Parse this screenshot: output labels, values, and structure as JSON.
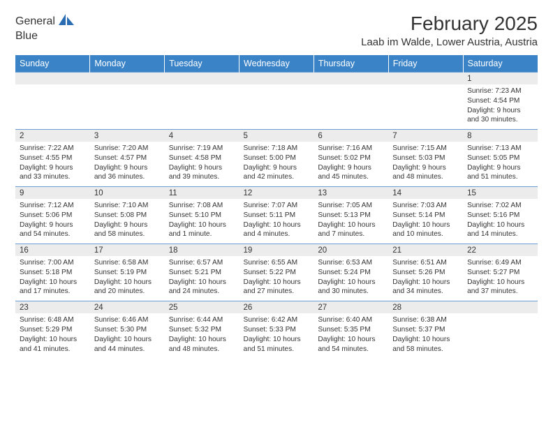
{
  "brand": {
    "part1": "General",
    "part2": "Blue",
    "icon_color": "#2a6db3",
    "text_color_gray": "#5a5a5a"
  },
  "title": "February 2025",
  "location": "Laab im Walde, Lower Austria, Austria",
  "colors": {
    "header_bg": "#3b83c7",
    "header_text": "#ffffff",
    "daynum_bg": "#ececec",
    "rule": "#6a9dd3",
    "body_text": "#333333"
  },
  "weekday_labels": [
    "Sunday",
    "Monday",
    "Tuesday",
    "Wednesday",
    "Thursday",
    "Friday",
    "Saturday"
  ],
  "weeks": [
    {
      "nums": [
        "",
        "",
        "",
        "",
        "",
        "",
        "1"
      ],
      "cells": [
        null,
        null,
        null,
        null,
        null,
        null,
        {
          "sunrise": "Sunrise: 7:23 AM",
          "sunset": "Sunset: 4:54 PM",
          "daylight": "Daylight: 9 hours and 30 minutes."
        }
      ]
    },
    {
      "nums": [
        "2",
        "3",
        "4",
        "5",
        "6",
        "7",
        "8"
      ],
      "cells": [
        {
          "sunrise": "Sunrise: 7:22 AM",
          "sunset": "Sunset: 4:55 PM",
          "daylight": "Daylight: 9 hours and 33 minutes."
        },
        {
          "sunrise": "Sunrise: 7:20 AM",
          "sunset": "Sunset: 4:57 PM",
          "daylight": "Daylight: 9 hours and 36 minutes."
        },
        {
          "sunrise": "Sunrise: 7:19 AM",
          "sunset": "Sunset: 4:58 PM",
          "daylight": "Daylight: 9 hours and 39 minutes."
        },
        {
          "sunrise": "Sunrise: 7:18 AM",
          "sunset": "Sunset: 5:00 PM",
          "daylight": "Daylight: 9 hours and 42 minutes."
        },
        {
          "sunrise": "Sunrise: 7:16 AM",
          "sunset": "Sunset: 5:02 PM",
          "daylight": "Daylight: 9 hours and 45 minutes."
        },
        {
          "sunrise": "Sunrise: 7:15 AM",
          "sunset": "Sunset: 5:03 PM",
          "daylight": "Daylight: 9 hours and 48 minutes."
        },
        {
          "sunrise": "Sunrise: 7:13 AM",
          "sunset": "Sunset: 5:05 PM",
          "daylight": "Daylight: 9 hours and 51 minutes."
        }
      ]
    },
    {
      "nums": [
        "9",
        "10",
        "11",
        "12",
        "13",
        "14",
        "15"
      ],
      "cells": [
        {
          "sunrise": "Sunrise: 7:12 AM",
          "sunset": "Sunset: 5:06 PM",
          "daylight": "Daylight: 9 hours and 54 minutes."
        },
        {
          "sunrise": "Sunrise: 7:10 AM",
          "sunset": "Sunset: 5:08 PM",
          "daylight": "Daylight: 9 hours and 58 minutes."
        },
        {
          "sunrise": "Sunrise: 7:08 AM",
          "sunset": "Sunset: 5:10 PM",
          "daylight": "Daylight: 10 hours and 1 minute."
        },
        {
          "sunrise": "Sunrise: 7:07 AM",
          "sunset": "Sunset: 5:11 PM",
          "daylight": "Daylight: 10 hours and 4 minutes."
        },
        {
          "sunrise": "Sunrise: 7:05 AM",
          "sunset": "Sunset: 5:13 PM",
          "daylight": "Daylight: 10 hours and 7 minutes."
        },
        {
          "sunrise": "Sunrise: 7:03 AM",
          "sunset": "Sunset: 5:14 PM",
          "daylight": "Daylight: 10 hours and 10 minutes."
        },
        {
          "sunrise": "Sunrise: 7:02 AM",
          "sunset": "Sunset: 5:16 PM",
          "daylight": "Daylight: 10 hours and 14 minutes."
        }
      ]
    },
    {
      "nums": [
        "16",
        "17",
        "18",
        "19",
        "20",
        "21",
        "22"
      ],
      "cells": [
        {
          "sunrise": "Sunrise: 7:00 AM",
          "sunset": "Sunset: 5:18 PM",
          "daylight": "Daylight: 10 hours and 17 minutes."
        },
        {
          "sunrise": "Sunrise: 6:58 AM",
          "sunset": "Sunset: 5:19 PM",
          "daylight": "Daylight: 10 hours and 20 minutes."
        },
        {
          "sunrise": "Sunrise: 6:57 AM",
          "sunset": "Sunset: 5:21 PM",
          "daylight": "Daylight: 10 hours and 24 minutes."
        },
        {
          "sunrise": "Sunrise: 6:55 AM",
          "sunset": "Sunset: 5:22 PM",
          "daylight": "Daylight: 10 hours and 27 minutes."
        },
        {
          "sunrise": "Sunrise: 6:53 AM",
          "sunset": "Sunset: 5:24 PM",
          "daylight": "Daylight: 10 hours and 30 minutes."
        },
        {
          "sunrise": "Sunrise: 6:51 AM",
          "sunset": "Sunset: 5:26 PM",
          "daylight": "Daylight: 10 hours and 34 minutes."
        },
        {
          "sunrise": "Sunrise: 6:49 AM",
          "sunset": "Sunset: 5:27 PM",
          "daylight": "Daylight: 10 hours and 37 minutes."
        }
      ]
    },
    {
      "nums": [
        "23",
        "24",
        "25",
        "26",
        "27",
        "28",
        ""
      ],
      "cells": [
        {
          "sunrise": "Sunrise: 6:48 AM",
          "sunset": "Sunset: 5:29 PM",
          "daylight": "Daylight: 10 hours and 41 minutes."
        },
        {
          "sunrise": "Sunrise: 6:46 AM",
          "sunset": "Sunset: 5:30 PM",
          "daylight": "Daylight: 10 hours and 44 minutes."
        },
        {
          "sunrise": "Sunrise: 6:44 AM",
          "sunset": "Sunset: 5:32 PM",
          "daylight": "Daylight: 10 hours and 48 minutes."
        },
        {
          "sunrise": "Sunrise: 6:42 AM",
          "sunset": "Sunset: 5:33 PM",
          "daylight": "Daylight: 10 hours and 51 minutes."
        },
        {
          "sunrise": "Sunrise: 6:40 AM",
          "sunset": "Sunset: 5:35 PM",
          "daylight": "Daylight: 10 hours and 54 minutes."
        },
        {
          "sunrise": "Sunrise: 6:38 AM",
          "sunset": "Sunset: 5:37 PM",
          "daylight": "Daylight: 10 hours and 58 minutes."
        },
        null
      ]
    }
  ]
}
